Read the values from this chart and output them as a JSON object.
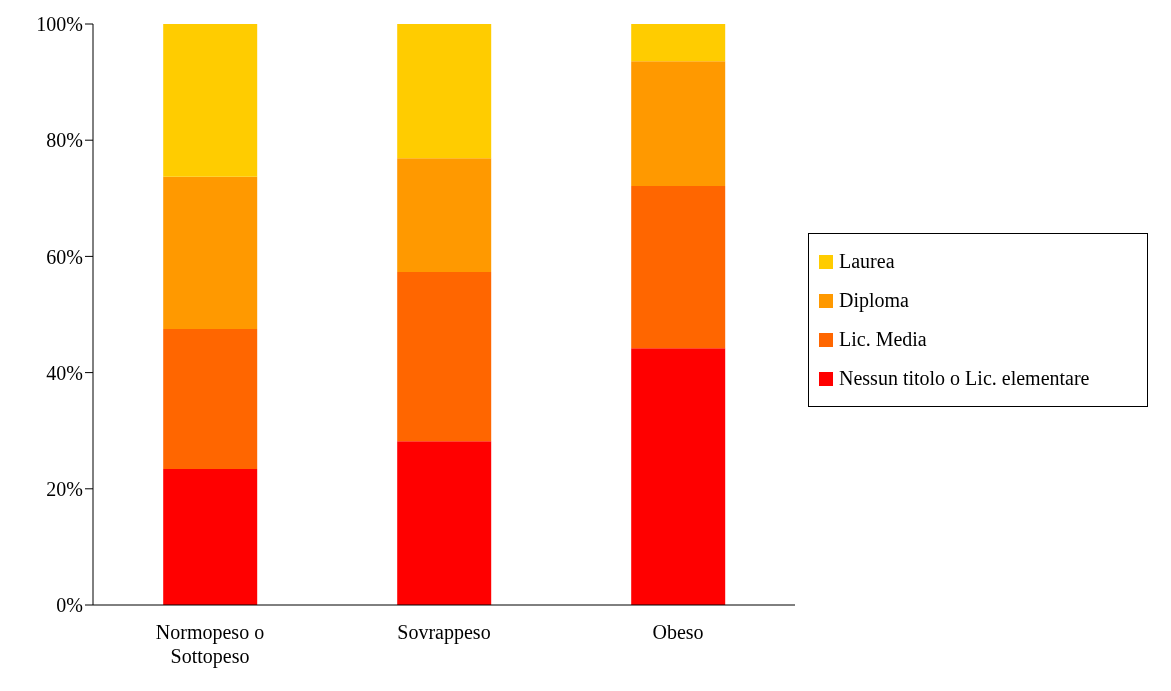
{
  "chart_data": {
    "type": "bar",
    "stacked": true,
    "categories": [
      "Normopeso o Sottopeso",
      "Sovrappeso",
      "Obeso"
    ],
    "series": [
      {
        "name": "Nessun titolo o Lic. elementare",
        "color": "#ff0000",
        "values": [
          23.4,
          28.2,
          44.2
        ]
      },
      {
        "name": "Lic. Media",
        "color": "#ff6600",
        "values": [
          24.1,
          29.1,
          27.9
        ]
      },
      {
        "name": "Diploma",
        "color": "#ff9900",
        "values": [
          26.2,
          19.6,
          21.5
        ]
      },
      {
        "name": "Laurea",
        "color": "#ffcc00",
        "values": [
          26.3,
          23.1,
          6.4
        ]
      }
    ],
    "ylim": [
      0,
      100
    ],
    "yticks": [
      {
        "value": 0,
        "label": "0%"
      },
      {
        "value": 20,
        "label": "20%"
      },
      {
        "value": 40,
        "label": "40%"
      },
      {
        "value": 60,
        "label": "60%"
      },
      {
        "value": 80,
        "label": "80%"
      },
      {
        "value": 100,
        "label": "100%"
      }
    ],
    "grid": false,
    "legend": "right"
  }
}
